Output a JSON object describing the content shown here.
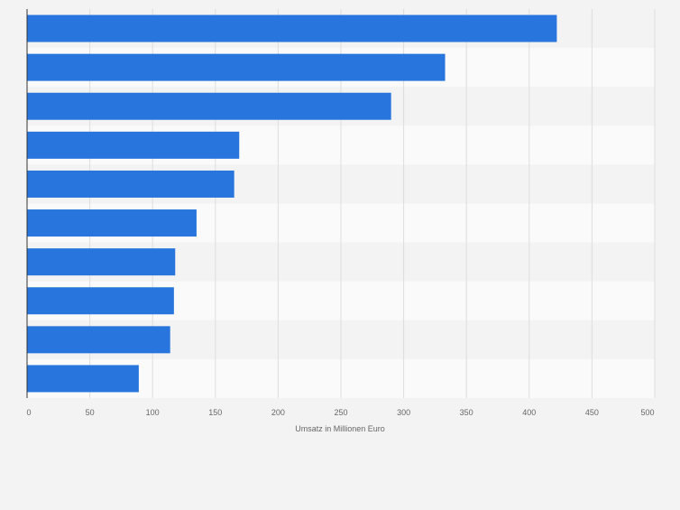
{
  "chart_data": {
    "type": "bar",
    "orientation": "horizontal",
    "title": "",
    "categories": [
      "",
      "",
      "",
      "",
      "",
      "",
      "",
      "",
      "",
      ""
    ],
    "values": [
      422,
      333,
      290,
      169,
      165,
      135,
      118,
      117,
      114,
      89
    ],
    "xlabel": "Umsatz in Millionen Euro",
    "ylabel": "",
    "xlim": [
      0,
      500
    ],
    "x_ticks": [
      0,
      50,
      100,
      150,
      200,
      250,
      300,
      350,
      400,
      450,
      500
    ],
    "grid": true,
    "colors": {
      "bar": "#2876dd",
      "background": "#f3f3f3",
      "band_light": "#fafafa",
      "band_dark": "#f3f3f3",
      "grid": "#dddddd",
      "axis": "#333333",
      "tick_text": "#666666"
    }
  }
}
